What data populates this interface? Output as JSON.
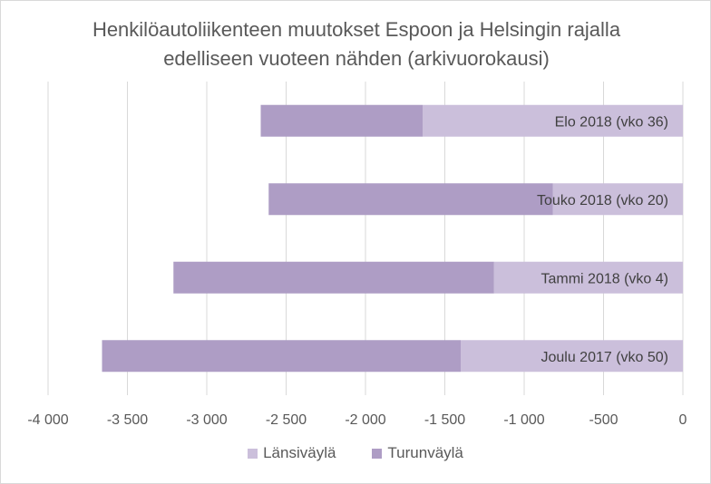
{
  "chart_data": {
    "type": "bar",
    "orientation": "horizontal",
    "stacked": true,
    "title_line1": "Henkilöautoliikenteen muutokset Espoon ja Helsingin rajalla",
    "title_line2": "edelliseen vuoteen nähden (arkivuorokausi)",
    "categories": [
      "Elo 2018 (vko 36)",
      "Touko 2018 (vko 20)",
      "Tammi 2018 (vko 4)",
      "Joulu 2017 (vko 50)"
    ],
    "series": [
      {
        "name": "Länsiväylä",
        "color": "#cbbfdb",
        "values": [
          -1640,
          -820,
          -1190,
          -1400
        ]
      },
      {
        "name": "Turunväylä",
        "color": "#ae9dc5",
        "values": [
          -1020,
          -1790,
          -2020,
          -2260
        ]
      }
    ],
    "xlim": [
      -4000,
      0
    ],
    "x_ticks": [
      -4000,
      -3500,
      -3000,
      -2500,
      -2000,
      -1500,
      -1000,
      -500,
      0
    ],
    "x_tick_labels": [
      "-4 000",
      "-3 500",
      "-3 000",
      "-2 500",
      "-2 000",
      "-1 500",
      "-1 000",
      "-500",
      "0"
    ],
    "grid": true,
    "legend_position": "bottom"
  }
}
